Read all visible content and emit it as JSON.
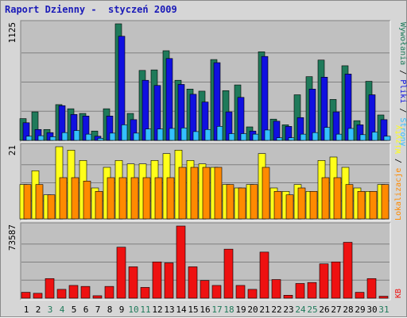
{
  "title": "Raport Dzienny -  styczeń 2009",
  "colors": {
    "hits": "#1f7a5a",
    "files": "#1010e0",
    "pages": "#34c0ff",
    "visits": "#ffff1a",
    "sites": "#ff8a00",
    "kb": "#ee1111",
    "weekend": "#1f7a5a",
    "weekday": "#000000",
    "panel_bg": "#c0c0c0"
  },
  "chart_data": [
    {
      "type": "bar",
      "panel": "top",
      "ymax_label": "1125",
      "ylim": [
        0,
        1125
      ],
      "legend_labels": [
        "Wywołania",
        "Pliki",
        "Strony"
      ],
      "legend_separator": " / ",
      "categories": [
        "1",
        "2",
        "3",
        "4",
        "5",
        "6",
        "7",
        "8",
        "9",
        "10",
        "11",
        "12",
        "13",
        "14",
        "15",
        "16",
        "17",
        "18",
        "19",
        "20",
        "21",
        "22",
        "23",
        "24",
        "25",
        "26",
        "27",
        "28",
        "29",
        "30",
        "31"
      ],
      "series": [
        {
          "name": "Wywołania",
          "values": [
            210,
            275,
            105,
            345,
            305,
            260,
            90,
            305,
            1125,
            260,
            675,
            680,
            865,
            580,
            495,
            475,
            780,
            480,
            535,
            130,
            855,
            205,
            150,
            440,
            615,
            775,
            395,
            720,
            190,
            570,
            245
          ]
        },
        {
          "name": "Pliki",
          "values": [
            170,
            105,
            75,
            335,
            250,
            235,
            40,
            235,
            1005,
            200,
            580,
            530,
            790,
            540,
            445,
            370,
            750,
            275,
            415,
            90,
            810,
            185,
            135,
            220,
            495,
            610,
            275,
            640,
            150,
            440,
            200
          ]
        },
        {
          "name": "Strony",
          "values": [
            40,
            45,
            35,
            75,
            95,
            60,
            20,
            70,
            150,
            70,
            110,
            110,
            115,
            120,
            85,
            105,
            135,
            65,
            65,
            60,
            100,
            25,
            25,
            60,
            75,
            125,
            60,
            115,
            55,
            80,
            40
          ]
        }
      ]
    },
    {
      "type": "bar",
      "panel": "middle",
      "ymax_label": "21",
      "ylim": [
        0,
        21
      ],
      "legend_labels": [
        "Lokalizacje",
        "Wizyty"
      ],
      "legend_separator": " / ",
      "categories": [
        "1",
        "2",
        "3",
        "4",
        "5",
        "6",
        "7",
        "8",
        "9",
        "10",
        "11",
        "12",
        "13",
        "14",
        "15",
        "16",
        "17",
        "18",
        "19",
        "20",
        "21",
        "22",
        "23",
        "24",
        "25",
        "26",
        "27",
        "28",
        "29",
        "30",
        "31"
      ],
      "series": [
        {
          "name": "Wizyty",
          "values": [
            10,
            14,
            7,
            21,
            20,
            17,
            9,
            15,
            17,
            16,
            16,
            17,
            19,
            20,
            17,
            16,
            15,
            10,
            9,
            10,
            19,
            9,
            8,
            10,
            8,
            17,
            18,
            15,
            9,
            8,
            10
          ]
        },
        {
          "name": "Lokalizacje",
          "values": [
            10,
            10,
            7,
            12,
            12,
            11,
            8,
            12,
            12,
            12,
            12,
            12,
            12,
            15,
            15,
            15,
            15,
            10,
            9,
            10,
            15,
            8,
            7,
            9,
            8,
            12,
            12,
            10,
            8,
            8,
            10
          ]
        }
      ]
    },
    {
      "type": "bar",
      "panel": "bottom",
      "ymax_label": "73587",
      "ylim": [
        0,
        73587
      ],
      "legend_labels": [
        "KB"
      ],
      "categories": [
        "1",
        "2",
        "3",
        "4",
        "5",
        "6",
        "7",
        "8",
        "9",
        "10",
        "11",
        "12",
        "13",
        "14",
        "15",
        "16",
        "17",
        "18",
        "19",
        "20",
        "21",
        "22",
        "23",
        "24",
        "25",
        "26",
        "27",
        "28",
        "29",
        "30",
        "31"
      ],
      "series": [
        {
          "name": "KB",
          "values": [
            6000,
            5000,
            20000,
            9000,
            13000,
            12000,
            2500,
            12000,
            52000,
            32000,
            11000,
            37000,
            36000,
            73587,
            32000,
            18000,
            13000,
            50000,
            13000,
            9000,
            47000,
            19000,
            3000,
            15000,
            16000,
            35000,
            37000,
            57000,
            6000,
            20000,
            2000
          ]
        }
      ]
    }
  ],
  "weekend_days": [
    "3",
    "4",
    "10",
    "11",
    "17",
    "18",
    "24",
    "25",
    "31"
  ]
}
